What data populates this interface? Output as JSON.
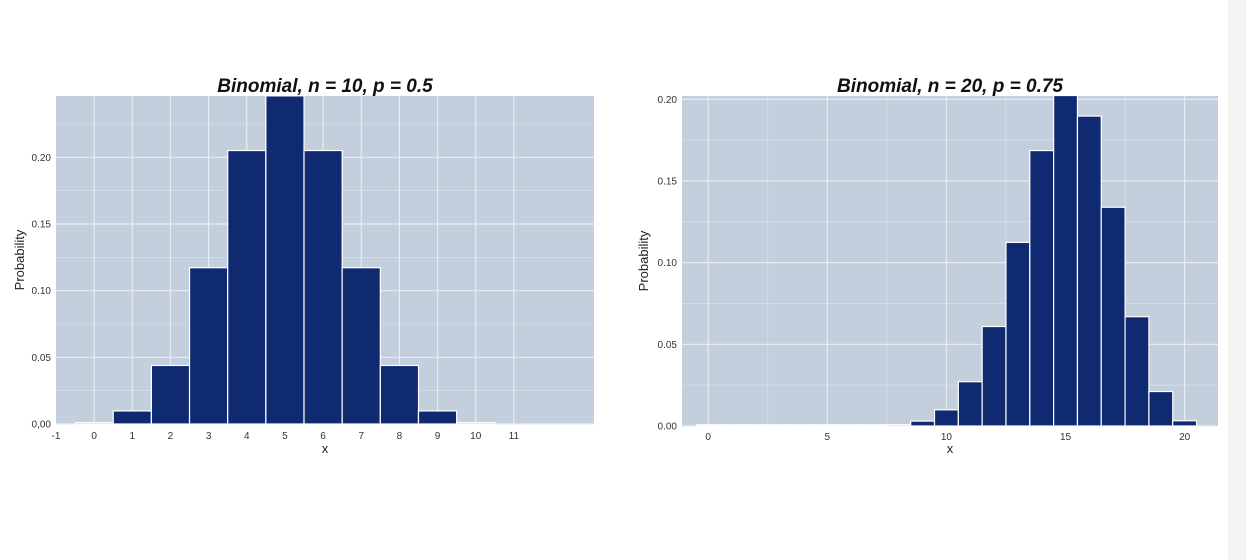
{
  "colors": {
    "panel_background": "#c3cfdd",
    "gridline": "#e8edf3",
    "bar_fill": "#0f2a70",
    "bar_stroke": "#ffffff"
  },
  "chart_data": [
    {
      "type": "bar",
      "title": "Binomial, n = 10, p = 0.5",
      "xlabel": "x",
      "ylabel": "Probability",
      "grid": true,
      "legend": "none",
      "xlim": [
        -1,
        13.1
      ],
      "ylim": [
        0,
        0.246
      ],
      "x_ticks": [
        -1,
        0,
        1,
        2,
        3,
        4,
        5,
        6,
        7,
        8,
        9,
        10,
        11
      ],
      "x_tick_labels": [
        "-1",
        "0",
        "1",
        "2",
        "3",
        "4",
        "5",
        "6",
        "7",
        "8",
        "9",
        "10",
        "11"
      ],
      "y_ticks": [
        0,
        0.05,
        0.1,
        0.15,
        0.2
      ],
      "y_tick_labels": [
        "0,00",
        "0.05",
        "0.10",
        "0.15",
        "0.20"
      ],
      "x": [
        0,
        1,
        2,
        3,
        4,
        5,
        6,
        7,
        8,
        9,
        10
      ],
      "values": [
        0.00098,
        0.0098,
        0.0439,
        0.1172,
        0.2051,
        0.2461,
        0.2051,
        0.1172,
        0.0439,
        0.0098,
        0.00098
      ]
    },
    {
      "type": "bar",
      "title": "Binomial, n = 20, p = 0.75",
      "xlabel": "x",
      "ylabel": "Probability",
      "grid": true,
      "legend": "none",
      "xlim": [
        -1.1,
        21.4
      ],
      "ylim": [
        0,
        0.202
      ],
      "x_ticks": [
        0,
        5,
        10,
        15,
        20
      ],
      "x_tick_labels": [
        "0",
        "5",
        "10",
        "15",
        "20"
      ],
      "y_ticks": [
        0,
        0.05,
        0.1,
        0.15,
        0.2
      ],
      "y_tick_labels": [
        "0.00",
        "0.05",
        "0.10",
        "0.15",
        "0.20"
      ],
      "x": [
        0,
        1,
        2,
        3,
        4,
        5,
        6,
        7,
        8,
        9,
        10,
        11,
        12,
        13,
        14,
        15,
        16,
        17,
        18,
        19,
        20
      ],
      "values": [
        0,
        0,
        0,
        0,
        0,
        0,
        0,
        0,
        0.0008,
        0.003,
        0.0099,
        0.0271,
        0.0609,
        0.1124,
        0.1686,
        0.2023,
        0.1897,
        0.1339,
        0.0669,
        0.0211,
        0.0032
      ]
    }
  ]
}
